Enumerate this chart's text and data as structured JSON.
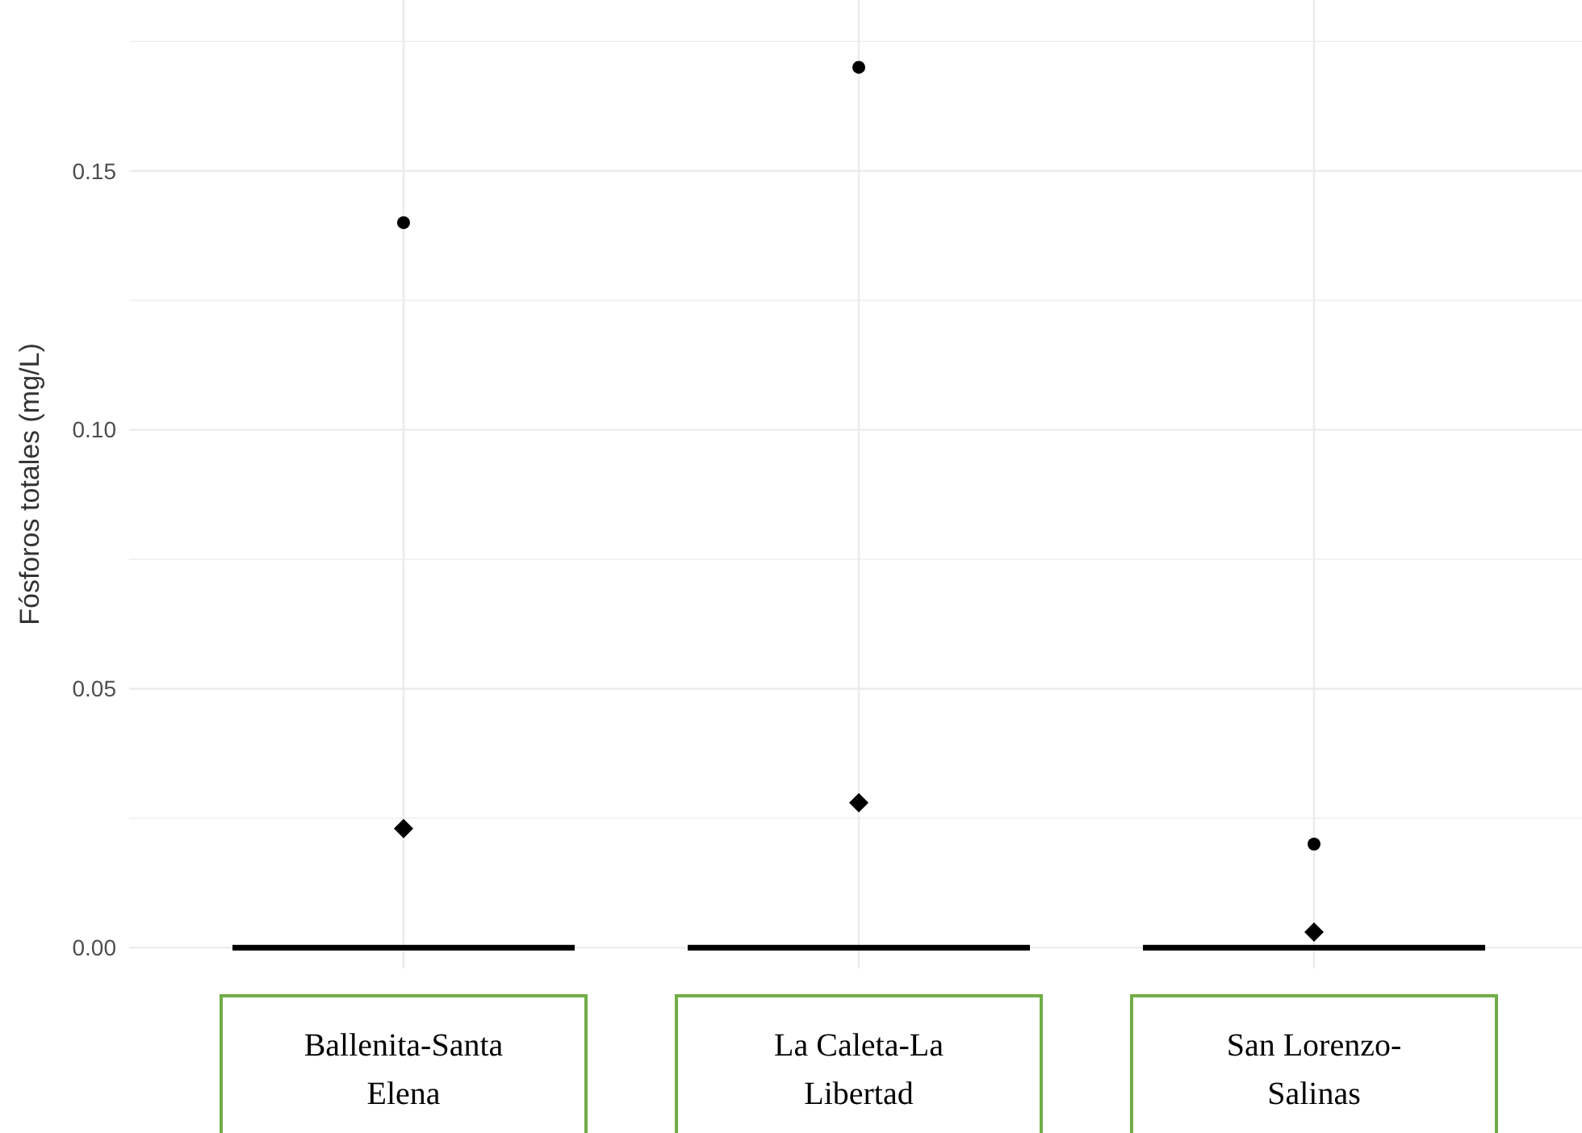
{
  "chart_data": {
    "type": "box",
    "ylabel": "Fósforos totales (mg/L)",
    "categories": [
      "Ballenita-Santa Elena",
      "La Caleta-La Libertad",
      "San Lorenzo-Salinas"
    ],
    "boxes": [
      {
        "low": 0,
        "q1": 0,
        "median": 0,
        "q3": 0,
        "high": 0,
        "mean": 0.023,
        "outliers": [
          0.14
        ]
      },
      {
        "low": 0,
        "q1": 0,
        "median": 0,
        "q3": 0,
        "high": 0,
        "mean": 0.028,
        "outliers": [
          0.17
        ]
      },
      {
        "low": 0,
        "q1": 0,
        "median": 0,
        "q3": 0,
        "high": 0,
        "mean": 0.003,
        "outliers": [
          0.02
        ]
      }
    ],
    "ylim": [
      -0.004,
      0.183
    ],
    "yticks": [
      {
        "value": 0,
        "label": "0.00"
      },
      {
        "value": 0.025,
        "label": null
      },
      {
        "value": 0.05,
        "label": "0.05"
      },
      {
        "value": 0.075,
        "label": null
      },
      {
        "value": 0.1,
        "label": "0.10"
      },
      {
        "value": 0.125,
        "label": null
      },
      {
        "value": 0.15,
        "label": "0.15"
      },
      {
        "value": 0.175,
        "label": null
      }
    ],
    "grid": true
  }
}
